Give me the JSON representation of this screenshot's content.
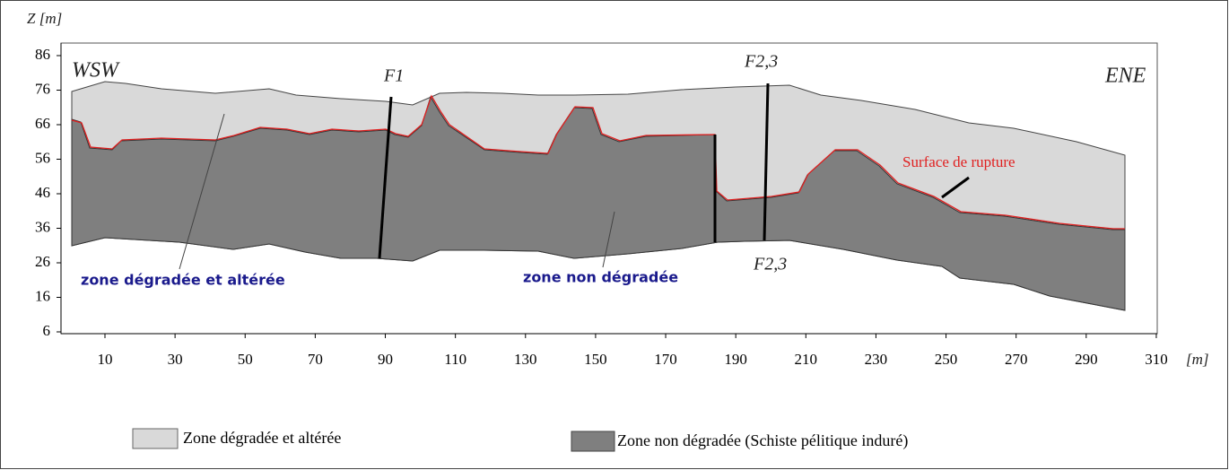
{
  "axes": {
    "y_label": "Z [m]",
    "x_unit": "[m]",
    "y_ticks": [
      "86",
      "76",
      "66",
      "56",
      "46",
      "36",
      "26",
      "16",
      "6"
    ],
    "x_ticks": [
      "10",
      "30",
      "50",
      "70",
      "90",
      "110",
      "130",
      "150",
      "170",
      "190",
      "210",
      "230",
      "250",
      "270",
      "290",
      "310"
    ]
  },
  "labels": {
    "wsw": "WSW",
    "ene": "ENE",
    "f1": "F1",
    "f23_top": "F2,3",
    "f23_bottom": "F2,3",
    "rupture": "Surface de rupture",
    "zone_degraded": "zone dégradée et altérée",
    "zone_intact": "zone non dégradée"
  },
  "legend": [
    {
      "label": "Zone dégradée et altérée"
    },
    {
      "label": "Zone non dégradée (Schiste pélitique induré)"
    }
  ]
}
